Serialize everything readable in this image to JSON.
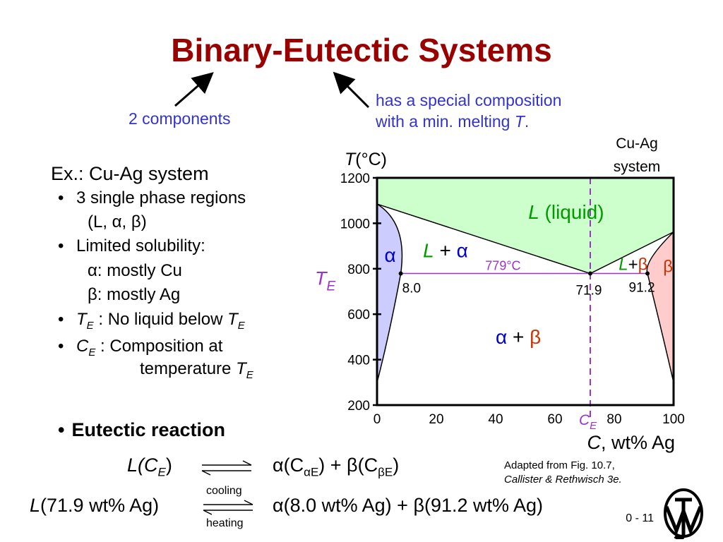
{
  "title": "Binary-Eutectic Systems",
  "notes": {
    "components": "2 components",
    "special_line1": "has a special composition",
    "special_line2_pre": "with a min. melting ",
    "special_line2_italic": "T",
    "special_line2_post": "."
  },
  "bullets": {
    "example": "Ex.:  Cu-Ag system",
    "b1": "3 single phase regions",
    "b1_sub": "(L, α, β)",
    "b2": "Limited solubility:",
    "b2_sub1": "α:  mostly Cu",
    "b2_sub2": "β:  mostly Ag",
    "b3_sym": "T",
    "b3_subscript": "E",
    "b3_text": " :  No liquid below ",
    "b3_sym2": "T",
    "b3_subscript2": "E",
    "b4_sym": "C",
    "b4_subscript": "E",
    "b4_text": " :  Composition at",
    "b4_cont": "temperature ",
    "b4_sym2": "T",
    "b4_subscript2": "E",
    "b5": "Eutectic reaction"
  },
  "equations": {
    "general_lhs": "L(C",
    "general_lhs_sub": "E",
    "general_lhs_end": ")",
    "general_rhs_a": "α(C",
    "general_rhs_a_sub": "αE",
    "general_rhs_mid": ") + β(C",
    "general_rhs_b_sub": "βE",
    "general_rhs_end": ")",
    "specific_lhs_italic": "L",
    "specific_lhs": "(71.9 wt% Ag)",
    "specific_rhs": "α(8.0 wt% Ag) + β(91.2 wt% Ag)",
    "arrow_top": "cooling",
    "arrow_bottom": "heating"
  },
  "adapted_line1": "Adapted from Fig. 10.7,",
  "adapted_line2": "Callister & Rethwisch 3e.",
  "page_number": "0 -  11",
  "colors": {
    "title": "#990000",
    "note": "#3333cc",
    "liquid": "#ccffcc",
    "alpha": "#ccccff",
    "beta": "#ffcccc",
    "eutectic_line": "#9933cc",
    "label_green": "#009900",
    "label_blue": "#0000cc",
    "label_red": "#cc3300"
  },
  "chart_data": {
    "type": "phase-diagram",
    "title": "Cu-Ag system",
    "xlabel": "C, wt% Ag",
    "ylabel": "T(°C)",
    "xlim": [
      0,
      100
    ],
    "ylim": [
      200,
      1200
    ],
    "xticks": [
      0,
      20,
      40,
      60,
      80,
      100
    ],
    "yticks": [
      200,
      400,
      600,
      800,
      1000,
      1200
    ],
    "melting_points": {
      "Cu": 1085,
      "Ag": 962
    },
    "eutectic": {
      "temperature": 779,
      "temperature_label": "779°C",
      "composition": 71.9,
      "alpha_limit": 8.0,
      "beta_limit": 91.2
    },
    "point_labels": [
      "8.0",
      "71.9",
      "91.2"
    ],
    "region_labels": {
      "liquid_L": "L",
      "liquid_text": " (liquid)",
      "alpha": "α",
      "L_plus": "L",
      "plus_alpha": "+",
      "alpha_sym": "α",
      "L_beta_L": "L",
      "L_beta_plus": "+",
      "L_beta_beta": "β",
      "beta": "β",
      "ab_alpha": "α",
      "ab_plus": "+",
      "ab_beta": "β"
    },
    "TE_label": "T",
    "TE_sub": "E",
    "CE_label": "C",
    "CE_sub": "E"
  }
}
